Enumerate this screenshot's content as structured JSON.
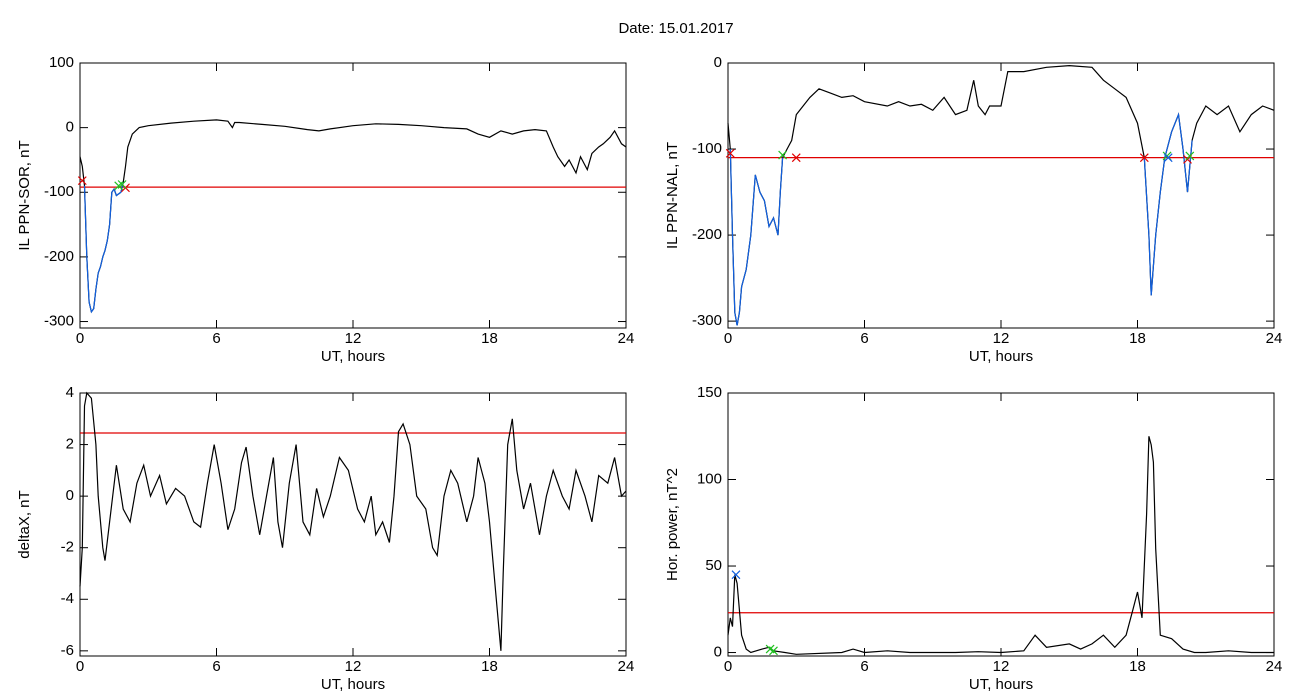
{
  "title": "Date:  15.01.2017",
  "chart_data": [
    {
      "type": "line",
      "xlabel": "UT, hours",
      "ylabel": "IL PPN-SOR, nT",
      "xlim": [
        0,
        24
      ],
      "xticks": [
        0,
        6,
        12,
        18,
        24
      ],
      "ylim": [
        -310,
        100
      ],
      "yticks": [
        -300,
        -200,
        -100,
        0,
        100
      ],
      "hline": -92,
      "hline_color": "#e00000",
      "series": [
        {
          "color": "#000000",
          "style": "line",
          "x": [
            0,
            0.1,
            0.2,
            0.3,
            0.4,
            0.5,
            0.6,
            0.7,
            0.8,
            0.9,
            1.0,
            1.1,
            1.2,
            1.3,
            1.4,
            1.5,
            1.6,
            1.8,
            1.9,
            2.0,
            2.1,
            2.3,
            2.6,
            3,
            4,
            5,
            6,
            6.5,
            6.7,
            6.8,
            7,
            8,
            9,
            10,
            10.5,
            11,
            12,
            13,
            14,
            15,
            16,
            17,
            17.5,
            18,
            18.5,
            19,
            19.5,
            20,
            20.5,
            20.8,
            21,
            21.3,
            21.5,
            21.8,
            22,
            22.3,
            22.5,
            22.8,
            23,
            23.3,
            23.5,
            23.8,
            24
          ],
          "values": [
            -45,
            -60,
            -90,
            -200,
            -270,
            -285,
            -280,
            -250,
            -225,
            -215,
            -200,
            -190,
            -175,
            -150,
            -100,
            -95,
            -105,
            -100,
            -85,
            -60,
            -30,
            -10,
            0,
            3,
            7,
            10,
            12,
            10,
            0,
            8,
            8,
            5,
            2,
            -3,
            -5,
            -2,
            3,
            6,
            5,
            3,
            0,
            -2,
            -10,
            -15,
            -5,
            -10,
            -5,
            -3,
            -5,
            -30,
            -45,
            -60,
            -50,
            -70,
            -45,
            -65,
            -40,
            -30,
            -25,
            -15,
            -5,
            -25,
            -30
          ]
        },
        {
          "color": "#1060e0",
          "style": "line",
          "x": [
            0.2,
            0.3,
            0.4,
            0.5,
            0.6,
            0.7,
            0.8,
            0.9,
            1.0,
            1.1,
            1.2,
            1.3,
            1.4,
            1.5,
            1.6,
            1.8,
            1.9
          ],
          "values": [
            -90,
            -200,
            -270,
            -285,
            -280,
            -250,
            -225,
            -215,
            -200,
            -190,
            -175,
            -150,
            -100,
            -95,
            -105,
            -100,
            -85
          ]
        },
        {
          "color": "#e00000",
          "style": "x",
          "x": [
            0.1,
            2.0
          ],
          "values": [
            -82,
            -93
          ]
        },
        {
          "color": "#20c020",
          "style": "x",
          "x": [
            1.7,
            1.85
          ],
          "values": [
            -90,
            -88
          ]
        }
      ]
    },
    {
      "type": "line",
      "xlabel": "UT, hours",
      "ylabel": "IL PPN-NAL, nT",
      "xlim": [
        0,
        24
      ],
      "xticks": [
        0,
        6,
        12,
        18,
        24
      ],
      "ylim": [
        -308,
        0
      ],
      "yticks": [
        -300,
        -200,
        -100,
        0
      ],
      "hline": -110,
      "hline_color": "#e00000",
      "series": [
        {
          "color": "#000000",
          "style": "line",
          "x": [
            0,
            0.1,
            0.2,
            0.3,
            0.4,
            0.5,
            0.6,
            0.8,
            1.0,
            1.2,
            1.4,
            1.6,
            1.8,
            2.0,
            2.2,
            2.3,
            2.4,
            2.6,
            2.8,
            3,
            3.3,
            3.6,
            4,
            4.5,
            5,
            5.5,
            6,
            7,
            7.5,
            8,
            8.5,
            9,
            9.5,
            10,
            10.5,
            10.8,
            11,
            11.3,
            11.5,
            12,
            12.3,
            13,
            14,
            15,
            16,
            16.5,
            17,
            17.5,
            18,
            18.3,
            18.5,
            18.6,
            18.8,
            19,
            19.2,
            19.5,
            19.8,
            20,
            20.2,
            20.4,
            20.6,
            21,
            21.5,
            22,
            22.5,
            23,
            23.5,
            24
          ],
          "values": [
            -70,
            -100,
            -200,
            -290,
            -305,
            -290,
            -260,
            -240,
            -200,
            -130,
            -150,
            -160,
            -190,
            -180,
            -200,
            -150,
            -110,
            -100,
            -90,
            -60,
            -50,
            -40,
            -30,
            -35,
            -40,
            -38,
            -45,
            -50,
            -45,
            -50,
            -48,
            -55,
            -40,
            -60,
            -55,
            -20,
            -50,
            -60,
            -50,
            -50,
            -10,
            -10,
            -5,
            -3,
            -5,
            -20,
            -30,
            -40,
            -70,
            -110,
            -200,
            -270,
            -200,
            -150,
            -110,
            -80,
            -60,
            -100,
            -150,
            -90,
            -70,
            -50,
            -60,
            -50,
            -80,
            -60,
            -50,
            -55
          ]
        },
        {
          "color": "#1060e0",
          "style": "line",
          "x": [
            0.1,
            0.2,
            0.3,
            0.4,
            0.5,
            0.6,
            0.8,
            1.0,
            1.2,
            1.4,
            1.6,
            1.8,
            2.0,
            2.2,
            2.3,
            2.4,
            10,
            18.3,
            18.5,
            18.6,
            18.8,
            19,
            19.2,
            19.5,
            19.8,
            20,
            20.2,
            20.4
          ],
          "values": [
            -100,
            -200,
            -290,
            -305,
            -290,
            -260,
            -240,
            -200,
            -130,
            -150,
            -160,
            -190,
            -180,
            -200,
            -150,
            -110,
            null,
            -110,
            -200,
            -270,
            -200,
            -150,
            -110,
            -80,
            -60,
            -100,
            -150,
            -90
          ]
        },
        {
          "color": "#e00000",
          "style": "x",
          "x": [
            0.1,
            3.0,
            18.3,
            20.2
          ],
          "values": [
            -105,
            -110,
            -110,
            -112
          ]
        },
        {
          "color": "#20c020",
          "style": "x",
          "x": [
            2.4,
            19.3,
            20.3
          ],
          "values": [
            -107,
            -108,
            -108
          ]
        },
        {
          "color": "#1060e0",
          "style": "x",
          "x": [
            19.35
          ],
          "values": [
            -110
          ]
        }
      ]
    },
    {
      "type": "line",
      "xlabel": "UT, hours",
      "ylabel": "deltaX, nT",
      "xlim": [
        0,
        24
      ],
      "xticks": [
        0,
        6,
        12,
        18,
        24
      ],
      "ylim": [
        -6.2,
        4
      ],
      "yticks": [
        -6,
        -4,
        -2,
        0,
        2,
        4
      ],
      "hline": 2.45,
      "hline_color": "#e00000",
      "series": [
        {
          "color": "#000000",
          "style": "line",
          "x": [
            0,
            0.1,
            0.2,
            0.3,
            0.5,
            0.7,
            0.8,
            1.0,
            1.1,
            1.3,
            1.6,
            1.9,
            2.2,
            2.5,
            2.8,
            3.1,
            3.5,
            3.8,
            4.2,
            4.6,
            5,
            5.3,
            5.6,
            5.9,
            6.2,
            6.5,
            6.8,
            7.1,
            7.3,
            7.6,
            7.9,
            8.2,
            8.5,
            8.7,
            8.9,
            9.2,
            9.5,
            9.8,
            10.1,
            10.4,
            10.7,
            11,
            11.4,
            11.8,
            12.2,
            12.5,
            12.8,
            13,
            13.3,
            13.6,
            13.8,
            14.0,
            14.2,
            14.5,
            14.8,
            15.2,
            15.5,
            15.7,
            16,
            16.3,
            16.6,
            17,
            17.3,
            17.5,
            17.8,
            18,
            18.3,
            18.5,
            18.6,
            18.8,
            19,
            19.2,
            19.5,
            19.8,
            20.2,
            20.5,
            20.8,
            21.2,
            21.5,
            21.8,
            22.2,
            22.5,
            22.8,
            23.2,
            23.5,
            23.8,
            24
          ],
          "values": [
            -3.5,
            -2,
            3.5,
            4,
            3.8,
            2,
            0,
            -2,
            -2.5,
            -1,
            1.2,
            -0.5,
            -1,
            0.5,
            1.2,
            0,
            0.8,
            -0.3,
            0.3,
            0,
            -1,
            -1.2,
            0.5,
            2,
            0.5,
            -1.3,
            -0.5,
            1.3,
            1.9,
            0,
            -1.5,
            0,
            1.5,
            -1,
            -2,
            0.5,
            2,
            -1,
            -1.5,
            0.3,
            -0.8,
            0,
            1.5,
            1,
            -0.5,
            -1,
            0,
            -1.5,
            -1,
            -1.8,
            0,
            2.5,
            2.8,
            2,
            0,
            -0.5,
            -2,
            -2.3,
            0,
            1,
            0.5,
            -1,
            0,
            1.5,
            0.5,
            -1,
            -4,
            -6,
            -3,
            2,
            3,
            1,
            -0.5,
            0.5,
            -1.5,
            0,
            1,
            0,
            -0.5,
            1,
            0,
            -1,
            0.8,
            0.5,
            1.5,
            0,
            0.2
          ]
        }
      ]
    },
    {
      "type": "line",
      "xlabel": "UT, hours",
      "ylabel": "Hor. power, nT^2",
      "xlim": [
        0,
        24
      ],
      "xticks": [
        0,
        6,
        12,
        18,
        24
      ],
      "ylim": [
        -2,
        150
      ],
      "yticks": [
        0,
        50,
        100,
        150
      ],
      "hline": 23,
      "hline_color": "#e00000",
      "series": [
        {
          "color": "#000000",
          "style": "line",
          "x": [
            0,
            0.1,
            0.2,
            0.3,
            0.4,
            0.6,
            0.8,
            1,
            1.5,
            1.8,
            2,
            2.5,
            3,
            5,
            5.5,
            6,
            7,
            8,
            9,
            10,
            11,
            12,
            13,
            13.5,
            14,
            15,
            15.5,
            16,
            16.5,
            17,
            17.5,
            17.8,
            18,
            18.2,
            18.4,
            18.5,
            18.6,
            18.7,
            18.8,
            19,
            19.5,
            20,
            20.5,
            21,
            22,
            23,
            24
          ],
          "values": [
            10,
            20,
            15,
            45,
            40,
            10,
            2,
            0,
            2,
            3,
            1,
            0,
            -1,
            0,
            2,
            0,
            1,
            0,
            0,
            0,
            0.5,
            0,
            1,
            10,
            3,
            5,
            2,
            5,
            10,
            3,
            10,
            25,
            35,
            20,
            80,
            125,
            120,
            110,
            60,
            10,
            8,
            2,
            0,
            0,
            1,
            0,
            0
          ]
        },
        {
          "color": "#1060e0",
          "style": "x",
          "x": [
            0.35
          ],
          "values": [
            45
          ]
        },
        {
          "color": "#20c020",
          "style": "x",
          "x": [
            1.85,
            2.0
          ],
          "values": [
            2,
            1
          ]
        }
      ]
    }
  ]
}
